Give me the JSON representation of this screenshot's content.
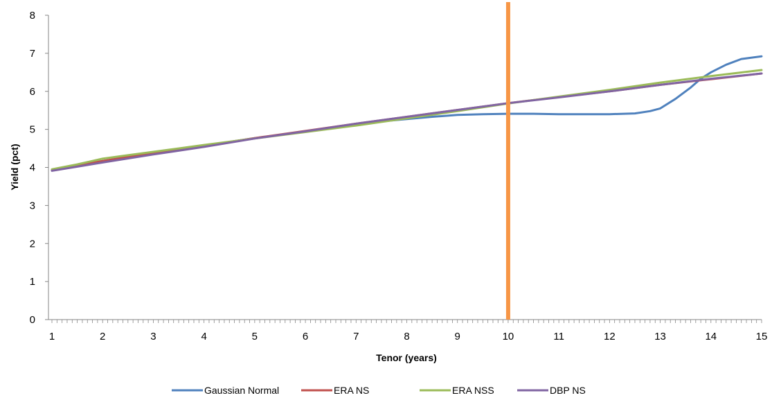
{
  "chart_data": {
    "type": "line",
    "xlabel": "Tenor (years)",
    "ylabel": "Yield (pct)",
    "xlim": [
      1,
      15
    ],
    "ylim": [
      0,
      8
    ],
    "x_ticks": [
      1,
      2,
      3,
      4,
      5,
      6,
      7,
      8,
      9,
      10,
      11,
      12,
      13,
      14,
      15
    ],
    "y_ticks": [
      0,
      1,
      2,
      3,
      4,
      5,
      6,
      7,
      8
    ],
    "grid": false,
    "legend_position": "bottom",
    "marker_line": {
      "x": 10,
      "color": "#F79646"
    },
    "series": [
      {
        "name": "Gaussian Normal",
        "color": "#4F81BD",
        "x": [
          1,
          2,
          3,
          4,
          5,
          6,
          7,
          7.5,
          8,
          8.5,
          9,
          9.5,
          10,
          10.5,
          11,
          11.5,
          12,
          12.5,
          12.8,
          13,
          13.3,
          13.6,
          13.8,
          14,
          14.3,
          14.6,
          15
        ],
        "y": [
          3.93,
          4.17,
          4.38,
          4.57,
          4.77,
          4.94,
          5.13,
          5.21,
          5.27,
          5.33,
          5.38,
          5.4,
          5.41,
          5.41,
          5.4,
          5.4,
          5.4,
          5.42,
          5.48,
          5.55,
          5.8,
          6.1,
          6.33,
          6.5,
          6.7,
          6.85,
          6.92
        ]
      },
      {
        "name": "ERA NS",
        "color": "#C0504D",
        "x": [
          1,
          2,
          3,
          4,
          5,
          6,
          7,
          8,
          9,
          10,
          11,
          12,
          13,
          14,
          15
        ],
        "y": [
          3.93,
          4.17,
          4.38,
          4.57,
          4.77,
          4.96,
          5.15,
          5.33,
          5.51,
          5.69,
          5.85,
          6.0,
          6.17,
          6.32,
          6.47
        ]
      },
      {
        "name": "ERA NSS",
        "color": "#9BBB59",
        "x": [
          1,
          1.5,
          2,
          2.5,
          3,
          3.5,
          4,
          5,
          6,
          7,
          8,
          9,
          10,
          11,
          12,
          13,
          14,
          15
        ],
        "y": [
          3.95,
          4.08,
          4.23,
          4.32,
          4.41,
          4.5,
          4.59,
          4.76,
          4.93,
          5.1,
          5.29,
          5.48,
          5.68,
          5.86,
          6.04,
          6.23,
          6.4,
          6.56
        ]
      },
      {
        "name": "DBP NS",
        "color": "#8064A2",
        "x": [
          1,
          2,
          3,
          4,
          5,
          6,
          7,
          8,
          9,
          10,
          11,
          12,
          13,
          14,
          15
        ],
        "y": [
          3.91,
          4.13,
          4.34,
          4.54,
          4.76,
          4.95,
          5.15,
          5.33,
          5.51,
          5.69,
          5.84,
          6.0,
          6.17,
          6.33,
          6.47
        ]
      }
    ]
  }
}
